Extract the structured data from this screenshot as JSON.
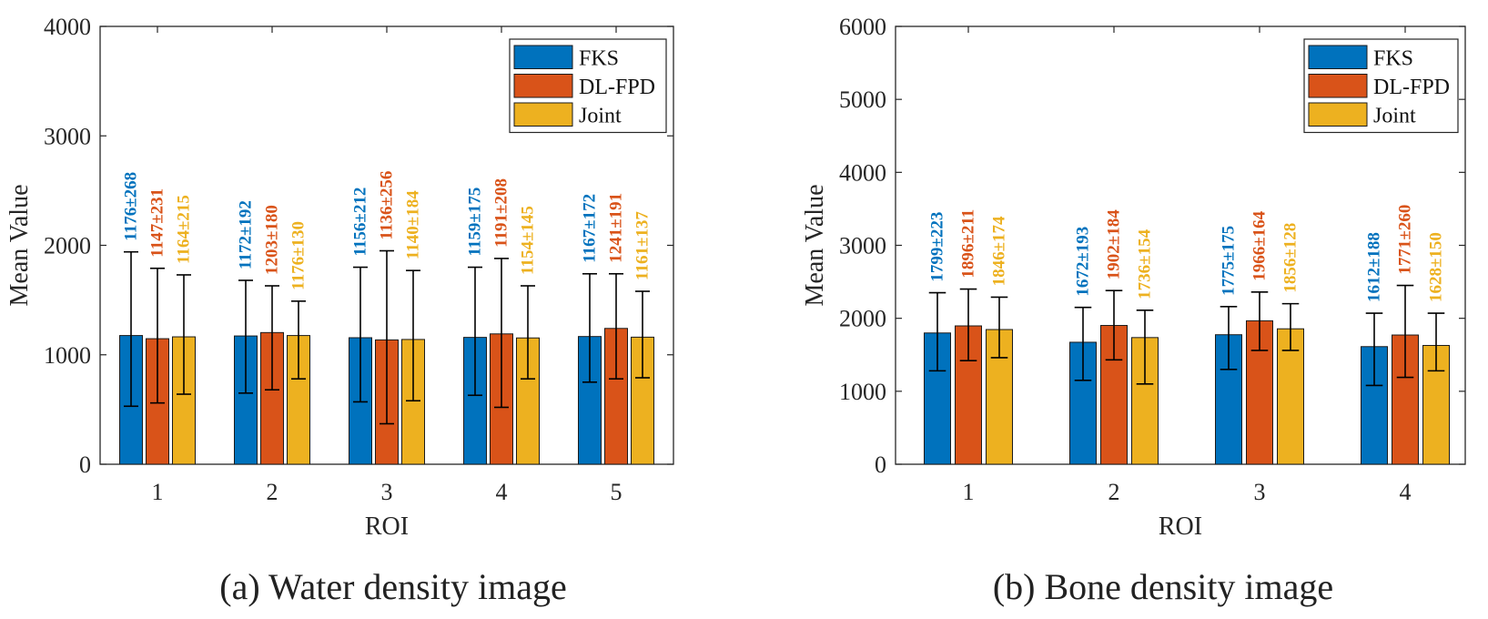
{
  "chart_data": [
    {
      "type": "bar",
      "caption": "(a) Water density image",
      "xlabel": "ROI",
      "ylabel": "Mean Value",
      "ylim": [
        0,
        4000
      ],
      "yticks": [
        0,
        1000,
        2000,
        3000,
        4000
      ],
      "categories": [
        "1",
        "2",
        "3",
        "4",
        "5"
      ],
      "legend_position": "top-right",
      "series": [
        {
          "name": "FKS",
          "color": "#0072BD",
          "values": [
            1176,
            1172,
            1156,
            1159,
            1167
          ],
          "std": [
            268,
            192,
            212,
            175,
            172
          ],
          "labels": [
            "1176±268",
            "1172±192",
            "1156±212",
            "1159±175",
            "1167±172"
          ],
          "err_low": [
            530,
            650,
            570,
            630,
            750
          ],
          "err_high": [
            1940,
            1680,
            1800,
            1800,
            1740
          ]
        },
        {
          "name": "DL-FPD",
          "color": "#D95319",
          "values": [
            1147,
            1203,
            1136,
            1191,
            1241
          ],
          "std": [
            231,
            180,
            256,
            208,
            191
          ],
          "labels": [
            "1147±231",
            "1203±180",
            "1136±256",
            "1191±208",
            "1241±191"
          ],
          "err_low": [
            560,
            680,
            370,
            520,
            780
          ],
          "err_high": [
            1790,
            1630,
            1950,
            1880,
            1740
          ]
        },
        {
          "name": "Joint",
          "color": "#EDB120",
          "values": [
            1164,
            1176,
            1140,
            1154,
            1161
          ],
          "std": [
            215,
            130,
            184,
            145,
            137
          ],
          "labels": [
            "1164±215",
            "1176±130",
            "1140±184",
            "1154±145",
            "1161±137"
          ],
          "err_low": [
            640,
            780,
            580,
            780,
            790
          ],
          "err_high": [
            1730,
            1490,
            1770,
            1630,
            1580
          ]
        }
      ]
    },
    {
      "type": "bar",
      "caption": "(b) Bone density image",
      "xlabel": "ROI",
      "ylabel": "Mean Value",
      "ylim": [
        0,
        6000
      ],
      "yticks": [
        0,
        1000,
        2000,
        3000,
        4000,
        5000,
        6000
      ],
      "categories": [
        "1",
        "2",
        "3",
        "4"
      ],
      "legend_position": "top-right",
      "series": [
        {
          "name": "FKS",
          "color": "#0072BD",
          "values": [
            1799,
            1672,
            1775,
            1612
          ],
          "std": [
            223,
            193,
            175,
            188
          ],
          "labels": [
            "1799±223",
            "1672±193",
            "1775±175",
            "1612±188"
          ],
          "err_low": [
            1280,
            1150,
            1300,
            1080
          ],
          "err_high": [
            2350,
            2150,
            2160,
            2070
          ]
        },
        {
          "name": "DL-FPD",
          "color": "#D95319",
          "values": [
            1896,
            1902,
            1966,
            1771
          ],
          "std": [
            211,
            184,
            164,
            260
          ],
          "labels": [
            "1896±211",
            "1902±184",
            "1966±164",
            "1771±260"
          ],
          "err_low": [
            1420,
            1430,
            1560,
            1190
          ],
          "err_high": [
            2400,
            2380,
            2360,
            2450
          ]
        },
        {
          "name": "Joint",
          "color": "#EDB120",
          "values": [
            1846,
            1736,
            1856,
            1628
          ],
          "std": [
            174,
            154,
            128,
            150
          ],
          "labels": [
            "1846±174",
            "1736±154",
            "1856±128",
            "1628±150"
          ],
          "err_low": [
            1460,
            1100,
            1560,
            1280
          ],
          "err_high": [
            2290,
            2110,
            2200,
            2070
          ]
        }
      ]
    }
  ]
}
